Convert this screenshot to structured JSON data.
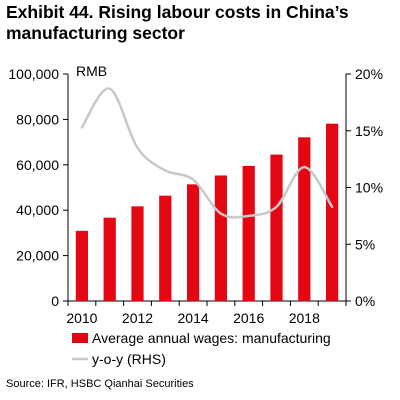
{
  "title": "Exhibit 44. Rising labour costs in China’s manufacturing sector",
  "source": "Source: IFR, HSBC Qianhai Securities",
  "chart_data": {
    "type": "bar",
    "unit_label": "RMB",
    "x": [
      2010,
      2011,
      2012,
      2013,
      2014,
      2015,
      2016,
      2017,
      2018,
      2019
    ],
    "xticks": [
      "2010",
      "2012",
      "2014",
      "2016",
      "2018"
    ],
    "left_axis": {
      "ylim": [
        0,
        100000
      ],
      "ticks": [
        "0",
        "20,000",
        "40,000",
        "60,000",
        "80,000",
        "100,000"
      ]
    },
    "right_axis": {
      "ylim": [
        0,
        20
      ],
      "ticks": [
        "0%",
        "5%",
        "10%",
        "15%",
        "20%"
      ]
    },
    "series": [
      {
        "name": "Average annual wages: manufacturing",
        "type": "bar",
        "axis": "left",
        "color": "#e30613",
        "values": [
          30900,
          36700,
          41700,
          46400,
          51400,
          55300,
          59500,
          64500,
          72100,
          78100
        ]
      },
      {
        "name": "y-o-y (RHS)",
        "type": "line",
        "axis": "right",
        "color": "#c8c8c8",
        "values": [
          15.3,
          18.7,
          13.5,
          11.5,
          10.7,
          7.7,
          7.5,
          8.3,
          11.8,
          8.3
        ]
      }
    ],
    "grid": false,
    "legend": "bottom-center"
  }
}
